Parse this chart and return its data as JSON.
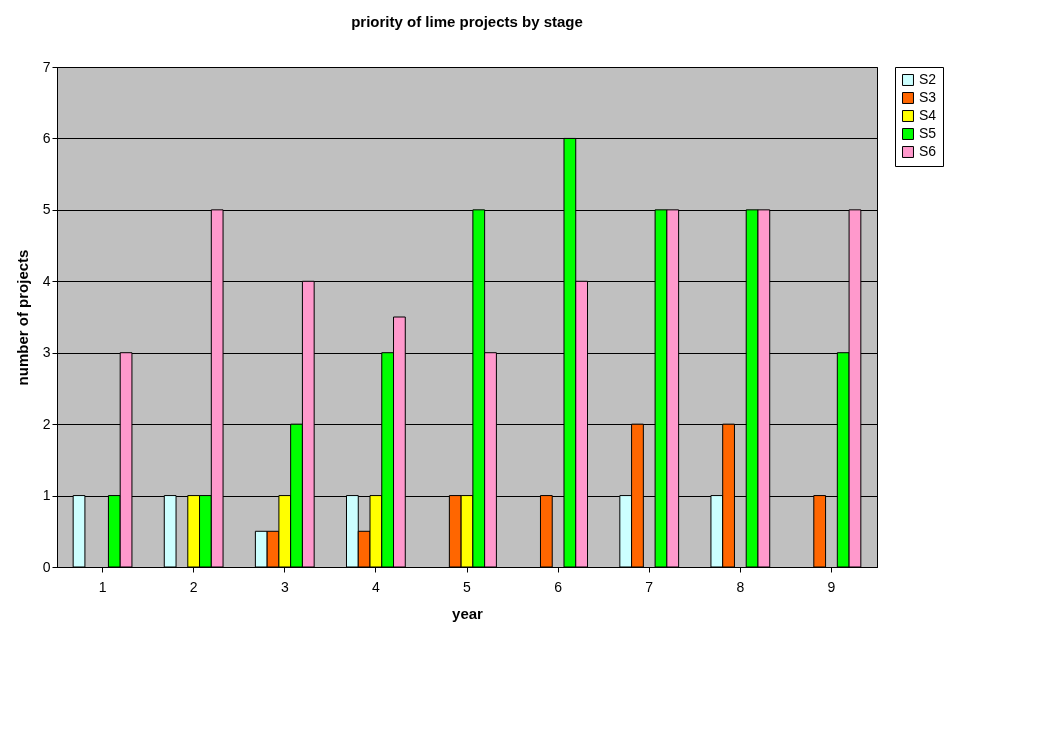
{
  "chart_data": {
    "type": "bar",
    "title": "priority of lime projects by stage",
    "xlabel": "year",
    "ylabel": "number of projects",
    "categories": [
      "1",
      "2",
      "3",
      "4",
      "5",
      "6",
      "7",
      "8",
      "9"
    ],
    "series": [
      {
        "name": "S2",
        "color": "#ccffff",
        "values": [
          1,
          1,
          0.5,
          1,
          null,
          null,
          1,
          1,
          null
        ]
      },
      {
        "name": "S3",
        "color": "#ff6600",
        "values": [
          null,
          null,
          0.5,
          0.5,
          1,
          1,
          2,
          2,
          1
        ]
      },
      {
        "name": "S4",
        "color": "#ffff00",
        "values": [
          null,
          1,
          1,
          1,
          1,
          null,
          null,
          null,
          null
        ]
      },
      {
        "name": "S5",
        "color": "#00ff00",
        "values": [
          1,
          1,
          2,
          3,
          5,
          6,
          5,
          5,
          3
        ]
      },
      {
        "name": "S6",
        "color": "#ff99cc",
        "values": [
          3,
          5,
          4,
          3.5,
          3,
          4,
          5,
          5,
          5
        ]
      }
    ],
    "ylim": [
      0,
      7
    ],
    "yticks": [
      0,
      1,
      2,
      3,
      4,
      5,
      6,
      7
    ],
    "grid": "y",
    "legend": "right"
  }
}
